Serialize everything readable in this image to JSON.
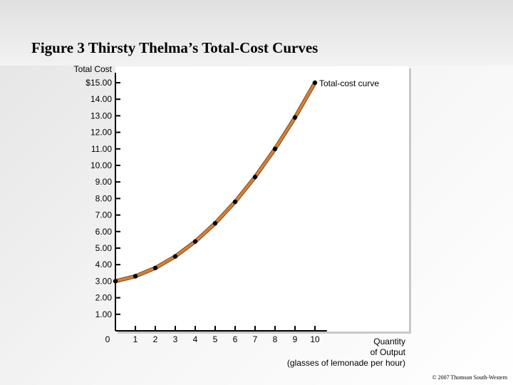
{
  "page": {
    "title": "Figure 3 Thirsty Thelma’s Total-Cost Curves",
    "copyright": "© 2007 Thomson South-Western"
  },
  "chart_data": {
    "type": "line",
    "title": "Figure 3 Thirsty Thelma’s Total-Cost Curves",
    "ylabel": "Total Cost",
    "xlabel_lines": [
      "Quantity",
      "of Output",
      "(glasses of lemonade per hour)"
    ],
    "x_ticks": [
      "0",
      "1",
      "2",
      "3",
      "4",
      "5",
      "6",
      "7",
      "8",
      "9",
      "10"
    ],
    "y_ticks": [
      "1.00",
      "2.00",
      "3.00",
      "4.00",
      "5.00",
      "6.00",
      "7.00",
      "8.00",
      "9.00",
      "10.00",
      "11.00",
      "12.00",
      "13.00",
      "14.00",
      "$15.00"
    ],
    "xlim": [
      0,
      10
    ],
    "ylim": [
      0,
      15
    ],
    "series": [
      {
        "name": "Total-cost curve",
        "x": [
          0,
          1,
          2,
          3,
          4,
          5,
          6,
          7,
          8,
          9,
          10
        ],
        "y": [
          3.0,
          3.3,
          3.8,
          4.5,
          5.4,
          6.5,
          7.8,
          9.3,
          11.0,
          12.9,
          15.0
        ]
      }
    ],
    "annotation": "Total-cost curve",
    "colors": {
      "line": "#d4803a",
      "marker": "#000000",
      "axis": "#000000"
    }
  }
}
